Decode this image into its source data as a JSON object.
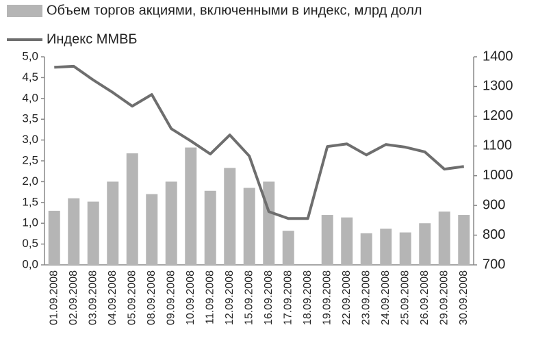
{
  "chart_data": {
    "type": "bar",
    "categories": [
      "01.09.2008",
      "02.09.2008",
      "03.09.2008",
      "04.09.2008",
      "05.09.2008",
      "08.09.2008",
      "09.09.2008",
      "10.09.2008",
      "11.09.2008",
      "12.09.2008",
      "15.09.2008",
      "16.09.2008",
      "17.09.2008",
      "18.09.2008",
      "19.09.2008",
      "22.09.2008",
      "23.09.2008",
      "24.09.2008",
      "25.09.2008",
      "26.09.2008",
      "29.09.2008",
      "30.09.2008"
    ],
    "series": [
      {
        "name": "Объем торгов акциями, включенными в индекс, млрд долл",
        "type": "bar",
        "color": "#b5b5b5",
        "values": [
          1.3,
          1.6,
          1.52,
          2.0,
          2.68,
          1.7,
          2.0,
          2.82,
          1.78,
          2.33,
          1.85,
          2.0,
          0.82,
          null,
          1.2,
          1.14,
          0.76,
          0.87,
          0.78,
          1.0,
          1.28,
          1.2
        ]
      },
      {
        "name": "Индекс ММВБ",
        "type": "line",
        "color": "#6e6e6e",
        "axis": "y2",
        "values": [
          1365,
          1368,
          1322,
          1280,
          1234,
          1273,
          1158,
          1117,
          1073,
          1137,
          1066,
          879,
          856,
          856,
          1098,
          1107,
          1070,
          1105,
          1096,
          1080,
          1022,
          1031
        ]
      }
    ],
    "ylim": [
      0,
      5
    ],
    "yticks": [
      {
        "value": 0,
        "label": "0,0"
      },
      {
        "value": 0.5,
        "label": "0,5"
      },
      {
        "value": 1,
        "label": "1,0"
      },
      {
        "value": 1.5,
        "label": "1,5"
      },
      {
        "value": 2,
        "label": "2,0"
      },
      {
        "value": 2.5,
        "label": "2,5"
      },
      {
        "value": 3,
        "label": "3,0"
      },
      {
        "value": 3.5,
        "label": "3,5"
      },
      {
        "value": 4,
        "label": "4,0"
      },
      {
        "value": 4.5,
        "label": "4,5"
      },
      {
        "value": 5,
        "label": "5,0"
      }
    ],
    "y2lim": [
      700,
      1400
    ],
    "y2ticks": [
      700,
      800,
      900,
      1000,
      1100,
      1200,
      1300,
      1400
    ],
    "grid": false
  }
}
